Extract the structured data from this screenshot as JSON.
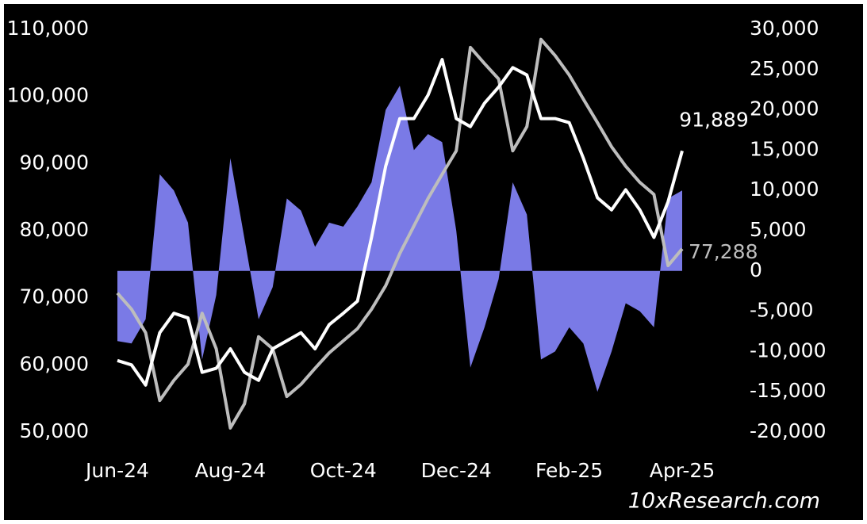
{
  "chart_data": {
    "type": "line",
    "background": "#000000",
    "categories": [
      "Jun-24",
      null,
      null,
      null,
      null,
      null,
      null,
      null,
      "Aug-24",
      null,
      null,
      null,
      null,
      null,
      null,
      null,
      "Oct-24",
      null,
      null,
      null,
      null,
      null,
      null,
      null,
      "Dec-24",
      null,
      null,
      null,
      null,
      null,
      null,
      null,
      "Feb-25",
      null,
      null,
      null,
      null,
      null,
      null,
      null,
      "Apr-25"
    ],
    "ylim": [
      50000,
      110000
    ],
    "yticks": [
      {
        "value": 50000,
        "label": "50,000"
      },
      {
        "value": 60000,
        "label": "60,000"
      },
      {
        "value": 70000,
        "label": "70,000"
      },
      {
        "value": 80000,
        "label": "80,000"
      },
      {
        "value": 90000,
        "label": "90,000"
      },
      {
        "value": 100000,
        "label": "100,000"
      },
      {
        "value": 110000,
        "label": "110,000"
      }
    ],
    "y2lim": [
      -20000,
      30000
    ],
    "y2ticks": [
      {
        "value": -20000,
        "label": "-20,000"
      },
      {
        "value": -15000,
        "label": "-15,000"
      },
      {
        "value": -10000,
        "label": "-10,000"
      },
      {
        "value": -5000,
        "label": "-5,000"
      },
      0,
      {
        "value": 5000,
        "label": "5,000"
      },
      {
        "value": 10000,
        "label": "10,000"
      },
      {
        "value": 15000,
        "label": "15,000"
      },
      {
        "value": 20000,
        "label": "20,000"
      },
      {
        "value": 25000,
        "label": "25,000"
      },
      {
        "value": 30000,
        "label": "30,000"
      }
    ],
    "series": [
      {
        "type": "area",
        "axis": "y2",
        "color": "#7a7ae6",
        "values": [
          -8700,
          -9000,
          -6000,
          12000,
          10000,
          6000,
          -11000,
          -3000,
          14000,
          4000,
          -6000,
          -2000,
          9000,
          7500,
          3000,
          6000,
          5500,
          8000,
          11000,
          20000,
          23000,
          15000,
          17000,
          16000,
          5000,
          -12000,
          -7000,
          -1000,
          11000,
          7000,
          -11000,
          -10000,
          -7000,
          -9000,
          -15000,
          -10000,
          -4000,
          -5000,
          -7000,
          9000,
          10000
        ]
      },
      {
        "type": "line",
        "axis": "y",
        "color": "#bdbdbd",
        "values": [
          70700,
          68300,
          64800,
          54700,
          57700,
          60100,
          67700,
          62400,
          50600,
          54200,
          64200,
          62400,
          55300,
          57100,
          59500,
          61800,
          63600,
          65400,
          68300,
          71800,
          76600,
          80700,
          84800,
          88400,
          91900,
          107300,
          104900,
          102600,
          91900,
          95500,
          108500,
          106100,
          103200,
          99600,
          96100,
          92500,
          89600,
          87200,
          85400,
          74800,
          77288
        ]
      },
      {
        "type": "line",
        "axis": "y",
        "color": "#ffffff",
        "values": [
          60650,
          60000,
          57000,
          64800,
          67700,
          67000,
          58900,
          59500,
          62400,
          58900,
          57700,
          62400,
          63600,
          64800,
          62400,
          66000,
          67700,
          69500,
          79000,
          89600,
          96700,
          96700,
          100200,
          105500,
          96700,
          95500,
          99000,
          101400,
          104300,
          103200,
          96700,
          96700,
          96100,
          90800,
          84900,
          83100,
          86100,
          83100,
          79000,
          84300,
          91889
        ]
      }
    ],
    "annotations": [
      {
        "text": "91,889",
        "color": "#ffffff"
      },
      {
        "text": "77,288",
        "color": "#bdbdbd"
      }
    ],
    "source": "10xResearch.com"
  }
}
